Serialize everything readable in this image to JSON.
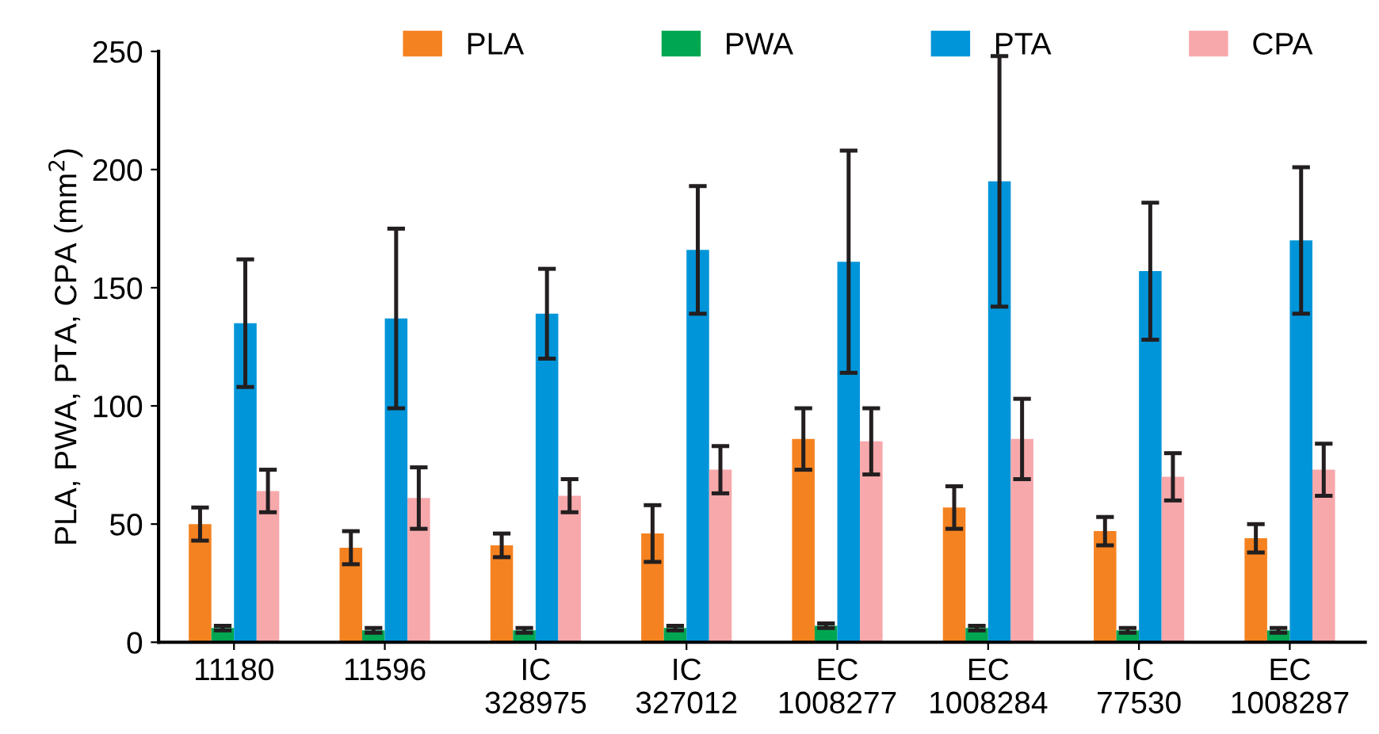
{
  "chart_data": {
    "type": "bar",
    "ylabel": "PLA, PWA, PTA, CPA (mm$^{2}$)",
    "categories": [
      "11180",
      "11596",
      "IC\n328975",
      "IC\n327012",
      "EC\n1008277",
      "EC\n1008284",
      "IC\n77530",
      "EC\n1008287"
    ],
    "series": [
      {
        "name": "PLA",
        "color": "#f58220",
        "values": [
          50,
          40,
          41,
          46,
          86,
          57,
          47,
          44
        ],
        "errors": [
          7,
          7,
          5,
          12,
          13,
          9,
          6,
          6
        ]
      },
      {
        "name": "PWA",
        "color": "#00a651",
        "values": [
          6,
          5,
          5,
          6,
          7,
          6,
          5,
          5
        ],
        "errors": [
          1,
          1,
          1,
          1,
          1,
          1,
          1,
          1
        ]
      },
      {
        "name": "PTA",
        "color": "#0095d9",
        "values": [
          135,
          137,
          139,
          166,
          161,
          195,
          157,
          170
        ],
        "errors": [
          27,
          38,
          19,
          27,
          47,
          53,
          29,
          31
        ]
      },
      {
        "name": "CPA",
        "color": "#f7a8ab",
        "values": [
          64,
          61,
          62,
          73,
          85,
          86,
          70,
          73
        ],
        "errors": [
          9,
          13,
          7,
          10,
          14,
          17,
          10,
          11
        ]
      }
    ],
    "ylim": [
      0,
      250
    ],
    "yticks": [
      0,
      50,
      100,
      150,
      200,
      250
    ],
    "grid": false,
    "legend": "top"
  }
}
